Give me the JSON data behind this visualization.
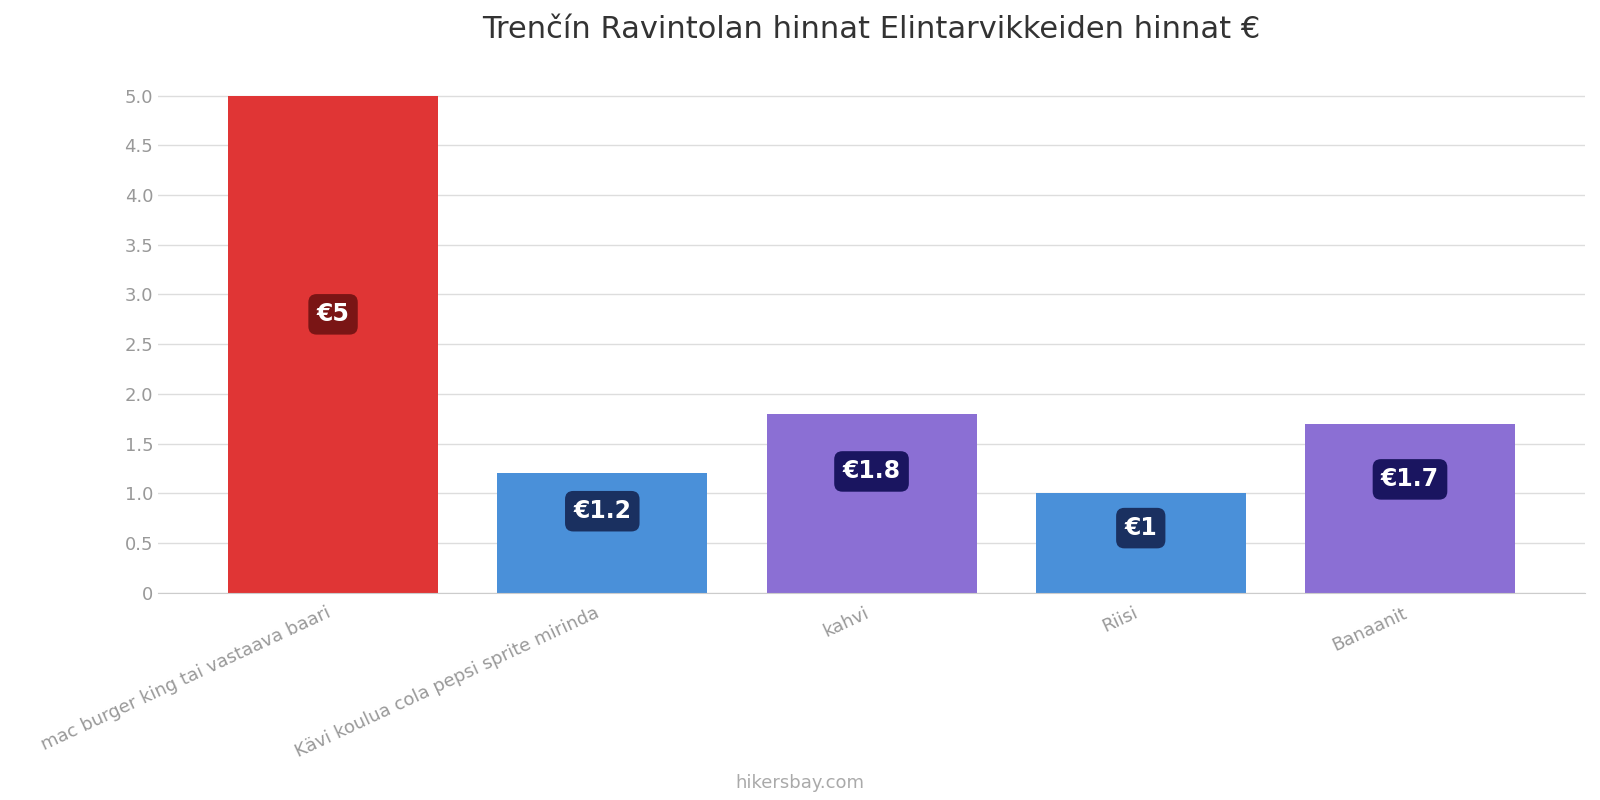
{
  "title": "Trenčín Ravintolan hinnat Elintarvikkeiden hinnat €",
  "categories": [
    "mac burger king tai vastaava baari",
    "Kävi koulua cola pepsi sprite mirinda",
    "kahvi",
    "Riisi",
    "Banaanit"
  ],
  "values": [
    5.0,
    1.2,
    1.8,
    1.0,
    1.7
  ],
  "bar_colors": [
    "#e03535",
    "#4a90d9",
    "#8b6fd4",
    "#4a90d9",
    "#8b6fd4"
  ],
  "label_bg_colors": [
    "#7a1515",
    "#1a3060",
    "#1a1560",
    "#1a3060",
    "#1a1560"
  ],
  "labels": [
    "€5",
    "€1.2",
    "€1.8",
    "€1",
    "€1.7"
  ],
  "label_y_abs": [
    2.8,
    0.82,
    1.22,
    0.65,
    1.14
  ],
  "ylim": [
    0,
    5.3
  ],
  "yticks": [
    0,
    0.5,
    1.0,
    1.5,
    2.0,
    2.5,
    3.0,
    3.5,
    4.0,
    4.5,
    5.0
  ],
  "ytick_labels": [
    "0",
    "0.5",
    "1.0",
    "1.5",
    "2.0",
    "2.5",
    "3.0",
    "3.5",
    "4.0",
    "4.5",
    "5.0"
  ],
  "footer": "hikersbay.com",
  "background_color": "#ffffff",
  "grid_color": "#dddddd",
  "title_fontsize": 22,
  "label_fontsize": 17,
  "tick_fontsize": 13,
  "footer_fontsize": 13,
  "bar_width": 0.78,
  "x_positions": [
    0,
    1,
    2,
    3,
    4
  ]
}
